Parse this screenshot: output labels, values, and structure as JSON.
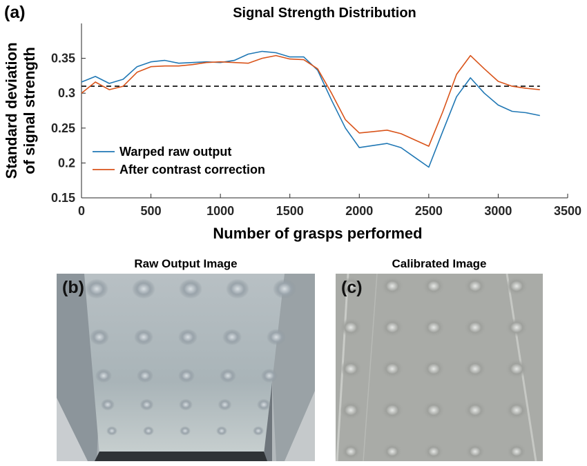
{
  "panel_a_label": "(a)",
  "panel_b_label": "(b)",
  "panel_c_label": "(c)",
  "image_b_title": "Raw Output Image",
  "image_c_title": "Calibrated Image",
  "chart_data": {
    "type": "line",
    "title": "Signal Strength Distribution",
    "xlabel": "Number of grasps performed",
    "ylabel_line1": "Standard deviation",
    "ylabel_line2": "of signal strength",
    "xlim": [
      0,
      3500
    ],
    "ylim": [
      0.15,
      0.4
    ],
    "xticks": [
      0,
      500,
      1000,
      1500,
      2000,
      2500,
      3000,
      3500
    ],
    "yticks": [
      0.15,
      0.2,
      0.25,
      0.3,
      0.35
    ],
    "ytick_labels": [
      "0.15",
      "0.2",
      "0.25",
      "0.3",
      "0.35"
    ],
    "grid": false,
    "legend_position": "lower-left",
    "reference_line": {
      "y": 0.31,
      "x_range": [
        0,
        3300
      ],
      "style": "dashed",
      "color": "#000000"
    },
    "series": [
      {
        "name": "Warped raw output",
        "color": "#1f77b4",
        "x": [
          0,
          100,
          200,
          300,
          400,
          500,
          600,
          700,
          800,
          900,
          1000,
          1100,
          1200,
          1300,
          1400,
          1500,
          1600,
          1700,
          1800,
          1900,
          2000,
          2100,
          2200,
          2300,
          2400,
          2500,
          2600,
          2700,
          2800,
          2900,
          3000,
          3100,
          3200,
          3300
        ],
        "y": [
          0.316,
          0.324,
          0.314,
          0.32,
          0.338,
          0.345,
          0.347,
          0.343,
          0.344,
          0.345,
          0.344,
          0.347,
          0.356,
          0.36,
          0.358,
          0.352,
          0.352,
          0.333,
          0.29,
          0.25,
          0.222,
          0.225,
          0.228,
          0.222,
          0.208,
          0.194,
          0.245,
          0.295,
          0.322,
          0.3,
          0.283,
          0.274,
          0.272,
          0.268
        ]
      },
      {
        "name": "After contrast correction",
        "color": "#d95319",
        "x": [
          0,
          100,
          200,
          300,
          400,
          500,
          600,
          700,
          800,
          900,
          1000,
          1100,
          1200,
          1300,
          1400,
          1500,
          1600,
          1700,
          1800,
          1900,
          2000,
          2100,
          2200,
          2300,
          2400,
          2500,
          2600,
          2700,
          2800,
          2900,
          3000,
          3100,
          3200,
          3300
        ],
        "y": [
          0.3,
          0.316,
          0.305,
          0.31,
          0.33,
          0.338,
          0.339,
          0.339,
          0.341,
          0.344,
          0.345,
          0.344,
          0.343,
          0.35,
          0.354,
          0.349,
          0.348,
          0.335,
          0.3,
          0.262,
          0.243,
          0.245,
          0.247,
          0.242,
          0.233,
          0.224,
          0.273,
          0.327,
          0.354,
          0.335,
          0.317,
          0.31,
          0.307,
          0.305
        ]
      }
    ]
  }
}
